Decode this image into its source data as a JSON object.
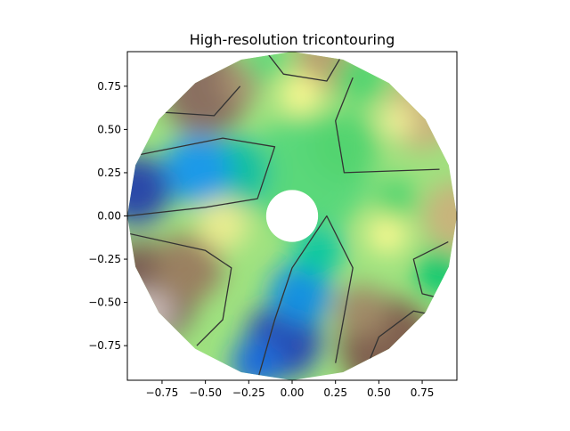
{
  "chart_data": {
    "type": "contour",
    "title": "High-resolution tricontouring",
    "xlabel": "",
    "ylabel": "",
    "xlim": [
      -0.95,
      0.95
    ],
    "ylim": [
      -0.95,
      0.95
    ],
    "xticks": [
      -0.75,
      -0.5,
      -0.25,
      0.0,
      0.25,
      0.5,
      0.75
    ],
    "xtick_labels": [
      "−0.75",
      "−0.50",
      "−0.25",
      "0.00",
      "0.25",
      "0.50",
      "0.75"
    ],
    "yticks": [
      0.75,
      0.5,
      0.25,
      0.0,
      -0.25,
      -0.5,
      -0.75
    ],
    "ytick_labels": [
      "0.75",
      "0.50",
      "0.25",
      "0.00",
      "−0.25",
      "−0.50",
      "−0.75"
    ],
    "domain": {
      "shape": "annulus",
      "inner_radius": 0.15,
      "outer_radius": 0.95
    },
    "colormap": "terrain",
    "grid": false,
    "legend": "none"
  }
}
